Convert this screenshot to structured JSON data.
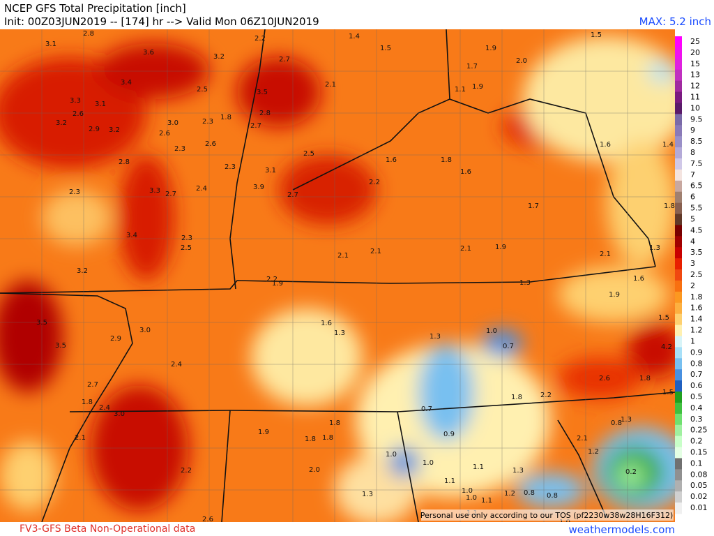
{
  "header": {
    "title": "NCEP GFS Total Precipitation [inch]",
    "init": "Init: 00Z03JUN2019 -- [174] hr --> Valid Mon 06Z10JUN2019",
    "max": "MAX: 5.2 inch"
  },
  "map": {
    "disclaimer": "Personal use only according to our TOS (pf2230w38w28H16F312)",
    "labels": [
      "3.1",
      "2.8",
      "3.6",
      "3.2",
      "2.2",
      "2.7",
      "1.4",
      "1.5",
      "1.5",
      "1.9",
      "2.0",
      "1.7",
      "3.4",
      "2.5",
      "3.5",
      "2.1",
      "1.1",
      "1.9",
      "3.3",
      "3.1",
      "2.6",
      "3.2",
      "2.9",
      "3.2",
      "2.6",
      "3.0",
      "2.3",
      "1.8",
      "2.8",
      "2.7",
      "2.6",
      "2.3",
      "2.5",
      "2.8",
      "2.3",
      "3.1",
      "1.6",
      "1.8",
      "1.6",
      "2.2",
      "3.3",
      "2.7",
      "2.4",
      "2.7",
      "3.9",
      "2.3",
      "1.7",
      "1.6",
      "1.4",
      "1.8",
      "3.4",
      "2.3",
      "2.5",
      "2.1",
      "2.1",
      "2.1",
      "1.9",
      "2.1",
      "1.3",
      "3.2",
      "2.2",
      "1.9",
      "1.3",
      "1.6",
      "1.9",
      "1.5",
      "3.5",
      "1.6",
      "1.3",
      "3.0",
      "1.0",
      "1.3",
      "2.9",
      "3.5",
      "0.7",
      "4.2",
      "2.4",
      "2.6",
      "1.8",
      "2.7",
      "1.5",
      "2.2",
      "1.8",
      "1.8",
      "2.4",
      "3.0",
      "0.7",
      "1.8",
      "1.9",
      "1.8",
      "1.8",
      "0.9",
      "0.8",
      "1.3",
      "2.1",
      "2.1",
      "1.2",
      "1.0",
      "1.0",
      "1.1",
      "1.3",
      "0.2",
      "2.2",
      "2.0",
      "1.1",
      "1.0",
      "1.0",
      "1.1",
      "1.2",
      "0.8",
      "0.8",
      "1.3",
      "1.1",
      "2.6",
      "1.0"
    ]
  },
  "colorbar": [
    {
      "label": "25",
      "color": "#ff00ff"
    },
    {
      "label": "20",
      "color": "#f010f0"
    },
    {
      "label": "15",
      "color": "#e020e0"
    },
    {
      "label": "13",
      "color": "#c030c0"
    },
    {
      "label": "12",
      "color": "#a02aa0"
    },
    {
      "label": "11",
      "color": "#7a1a80"
    },
    {
      "label": "10",
      "color": "#5a1a6a"
    },
    {
      "label": "9.5",
      "color": "#7a6aa8"
    },
    {
      "label": "9",
      "color": "#8a7ab8"
    },
    {
      "label": "8.5",
      "color": "#9a90c8"
    },
    {
      "label": "8",
      "color": "#b4aad8"
    },
    {
      "label": "7.5",
      "color": "#d0c8e8"
    },
    {
      "label": "7",
      "color": "#f4e4e0"
    },
    {
      "label": "6.5",
      "color": "#c8a8a0"
    },
    {
      "label": "6",
      "color": "#a08070"
    },
    {
      "label": "5.5",
      "color": "#886050"
    },
    {
      "label": "5",
      "color": "#603828"
    },
    {
      "label": "4.5",
      "color": "#780000"
    },
    {
      "label": "4",
      "color": "#a00000"
    },
    {
      "label": "3.5",
      "color": "#c80000"
    },
    {
      "label": "3",
      "color": "#e82000"
    },
    {
      "label": "2.5",
      "color": "#f04810"
    },
    {
      "label": "2",
      "color": "#f87010"
    },
    {
      "label": "1.8",
      "color": "#fc9820"
    },
    {
      "label": "1.6",
      "color": "#fdb040"
    },
    {
      "label": "1.4",
      "color": "#fed070"
    },
    {
      "label": "1.2",
      "color": "#fff0b0"
    },
    {
      "label": "1",
      "color": "#d8f4f8"
    },
    {
      "label": "0.9",
      "color": "#a8e0f8"
    },
    {
      "label": "0.8",
      "color": "#78c0f0"
    },
    {
      "label": "0.7",
      "color": "#4890e0"
    },
    {
      "label": "0.6",
      "color": "#2060c0"
    },
    {
      "label": "0.5",
      "color": "#20a020"
    },
    {
      "label": "0.4",
      "color": "#40c040"
    },
    {
      "label": "0.3",
      "color": "#70e070"
    },
    {
      "label": "0.25",
      "color": "#a0f0a0"
    },
    {
      "label": "0.2",
      "color": "#c8ffc8"
    },
    {
      "label": "0.15",
      "color": "#e4ffe4"
    },
    {
      "label": "0.1",
      "color": "#707070"
    },
    {
      "label": "0.08",
      "color": "#909090"
    },
    {
      "label": "0.05",
      "color": "#b0b0b0"
    },
    {
      "label": "0.02",
      "color": "#d0d0d0"
    },
    {
      "label": "0.01",
      "color": "#f0f0f0"
    }
  ],
  "footer": {
    "model": "FV3-GFS Beta Non-Operational data",
    "site": "weathermodels.com"
  }
}
